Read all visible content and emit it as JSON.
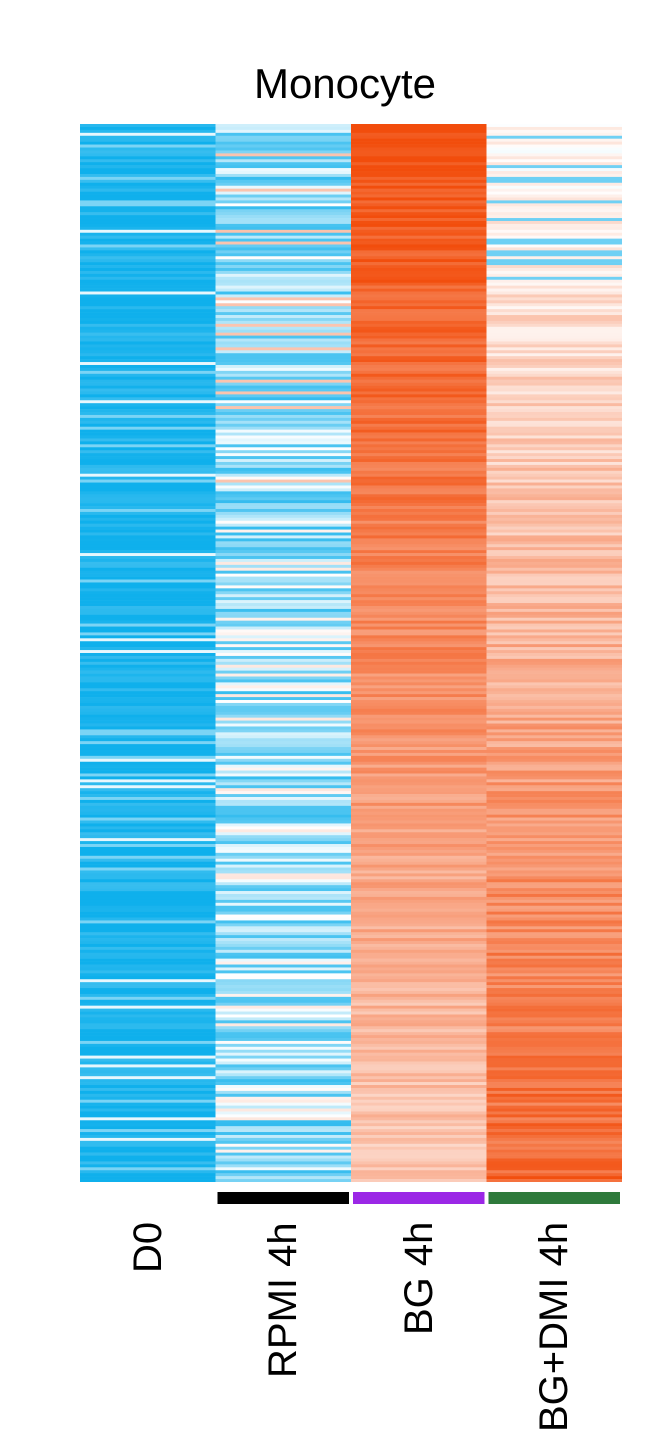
{
  "chart_data": {
    "type": "heatmap",
    "title": "Monocyte",
    "columns": [
      {
        "label": "D0",
        "group_color": ""
      },
      {
        "label": "RPMI 4h",
        "group_color": "#000000"
      },
      {
        "label": "BG 4h",
        "group_color": "#9b27e6"
      },
      {
        "label": "BG+DMI 4h",
        "group_color": "#2e7a3b"
      }
    ],
    "colormap": {
      "low": "#0fb0ec",
      "mid": "#ffffff",
      "high": "#f24d0c"
    },
    "value_range": [
      -1,
      1
    ],
    "row_count": 360,
    "column_mean_values": [
      -0.9,
      -0.05,
      0.6,
      0.45
    ],
    "legend": "none",
    "grid": false
  }
}
